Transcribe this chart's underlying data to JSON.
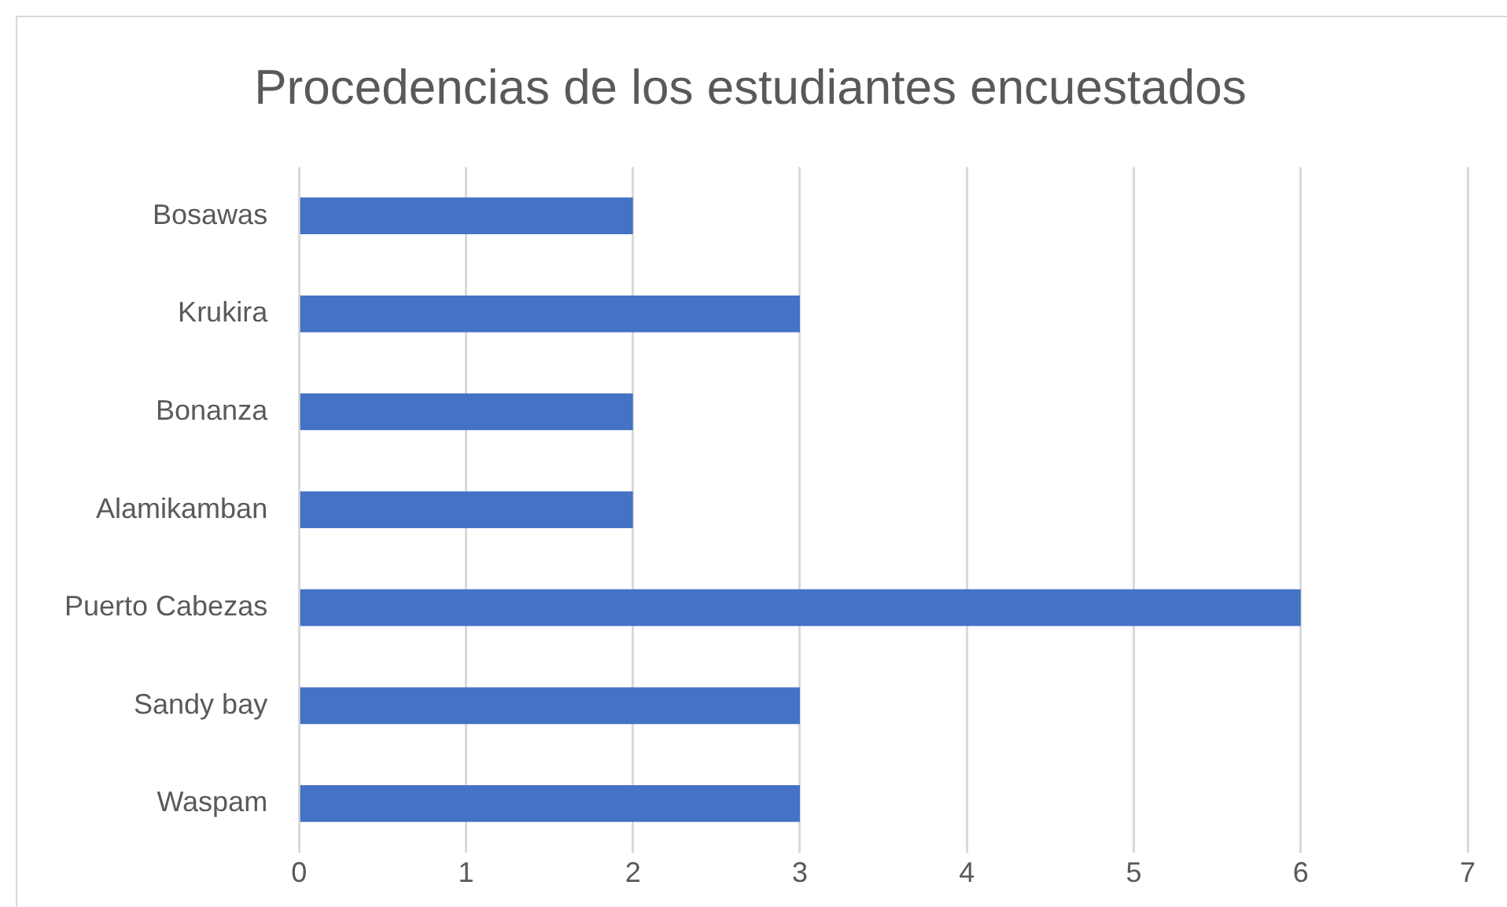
{
  "chart_data": {
    "type": "bar",
    "orientation": "horizontal",
    "title": "Procedencias de los estudiantes encuestados",
    "categories": [
      "Bosawas",
      "Krukira",
      "Bonanza",
      "Alamikamban",
      "Puerto Cabezas",
      "Sandy bay",
      "Waspam"
    ],
    "values": [
      2,
      3,
      2,
      2,
      6,
      3,
      3
    ],
    "color": "#4472c4",
    "xlim": [
      0,
      7
    ],
    "xticks": [
      0,
      1,
      2,
      3,
      4,
      5,
      6,
      7
    ],
    "grid": "x",
    "legend": false
  }
}
